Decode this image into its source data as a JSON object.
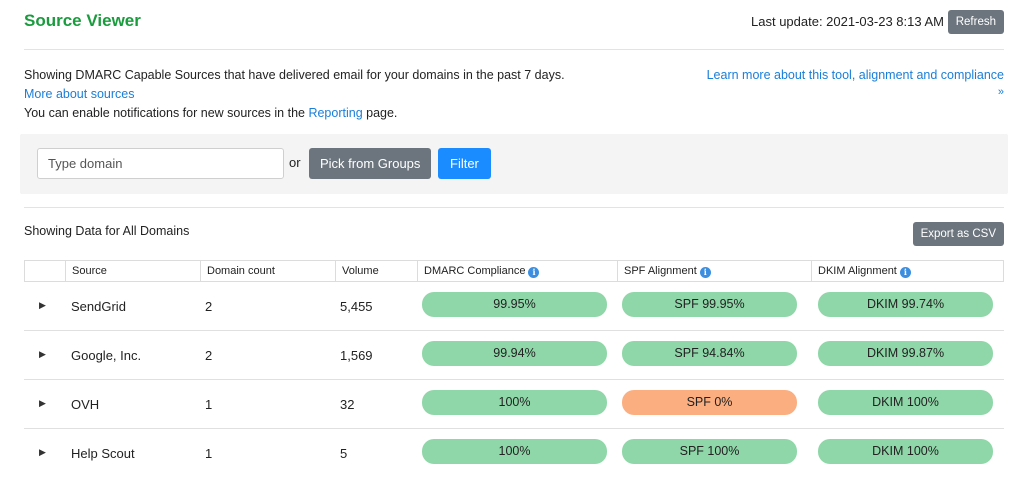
{
  "header": {
    "title": "Source Viewer",
    "last_update": "Last update: 2021-03-23 8:13 AM",
    "refresh_label": "Refresh"
  },
  "info": {
    "description": "Showing DMARC Capable Sources that have delivered email for your domains in the past 7 days.",
    "more_link": "More about sources",
    "notify_prefix": "You can enable notifications for new sources in the ",
    "notify_link": "Reporting",
    "notify_suffix": " page.",
    "learn_link": "Learn more about this tool, alignment and compliance",
    "expand_icon": "double-chevron-down-icon"
  },
  "filter": {
    "placeholder": "Type domain",
    "value": "",
    "or_text": "or",
    "groups_button": "Pick from Groups",
    "filter_button": "Filter"
  },
  "data_section": {
    "heading": "Showing Data for All Domains",
    "export_button": "Export as CSV"
  },
  "table": {
    "columns": [
      "",
      "Source",
      "Domain count",
      "Volume",
      "DMARC Compliance",
      "SPF Alignment",
      "DKIM Alignment"
    ],
    "rows": [
      {
        "source": "SendGrid",
        "domain_count": "2",
        "volume": "5,455",
        "dmarc": "99.95%",
        "spf": "SPF 99.95%",
        "dkim": "DKIM 99.74%",
        "spf_status": "good"
      },
      {
        "source": "Google, Inc.",
        "domain_count": "2",
        "volume": "1,569",
        "dmarc": "99.94%",
        "spf": "SPF 94.84%",
        "dkim": "DKIM 99.87%",
        "spf_status": "good"
      },
      {
        "source": "OVH",
        "domain_count": "1",
        "volume": "32",
        "dmarc": "100%",
        "spf": "SPF 0%",
        "dkim": "DKIM 100%",
        "spf_status": "bad"
      },
      {
        "source": "Help Scout",
        "domain_count": "1",
        "volume": "5",
        "dmarc": "100%",
        "spf": "SPF 100%",
        "dkim": "DKIM 100%",
        "spf_status": "good"
      }
    ]
  },
  "colors": {
    "title_green": "#1a9c3e",
    "link_blue": "#1a7ed8",
    "filter_blue": "#1a8cff",
    "button_gray": "#6c757d",
    "pill_good": "#8fd7a8",
    "pill_bad": "#fbae80"
  }
}
